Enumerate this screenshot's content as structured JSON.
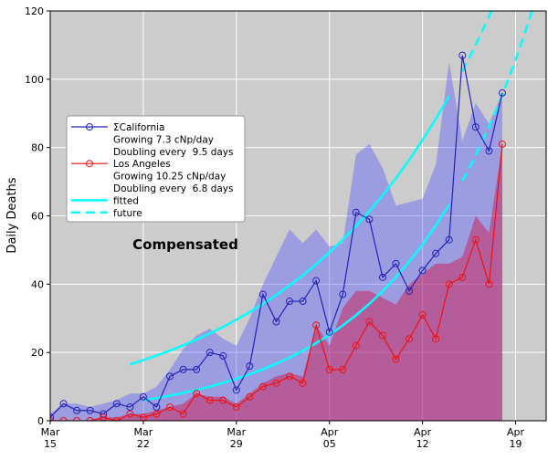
{
  "chart_data": {
    "type": "line",
    "ylabel": "Daily Deaths",
    "annotation": "Compensated",
    "xlim": [
      15,
      52.3
    ],
    "ylim": [
      0,
      120
    ],
    "yticks": [
      0,
      20,
      40,
      60,
      80,
      100,
      120
    ],
    "xticks": [
      {
        "value": 15,
        "label": "Mar 15"
      },
      {
        "value": 22,
        "label": "Mar 22"
      },
      {
        "value": 29,
        "label": "Mar 29"
      },
      {
        "value": 36,
        "label": "Apr 05"
      },
      {
        "value": 43,
        "label": "Apr 12"
      },
      {
        "value": 50,
        "label": "Apr 19"
      }
    ],
    "grid": true,
    "background": "#cccccc",
    "series": [
      {
        "name": "ΣCalifornia",
        "color": "#2222bb",
        "notes": [
          "Growing 7.3 cNp/day",
          "Doubling every  9.5 days"
        ],
        "x": [
          15,
          16,
          17,
          18,
          19,
          20,
          21,
          22,
          23,
          24,
          25,
          26,
          27,
          28,
          29,
          30,
          31,
          32,
          33,
          34,
          35,
          36,
          37,
          38,
          39,
          40,
          41,
          42,
          43,
          44,
          45,
          46,
          47,
          48,
          49
        ],
        "values": [
          1,
          5,
          3,
          3,
          2,
          5,
          4,
          7,
          4,
          13,
          15,
          15,
          20,
          19,
          9,
          16,
          37,
          29,
          35,
          35,
          41,
          26,
          37,
          61,
          59,
          42,
          46,
          38,
          44,
          49,
          53,
          107,
          86,
          79,
          96
        ]
      },
      {
        "name": "Los Angeles",
        "color": "#ee1111",
        "notes": [
          "Growing 10.25 cNp/day",
          "Doubling every  6.8 days"
        ],
        "x": [
          15,
          16,
          17,
          18,
          19,
          20,
          21,
          22,
          23,
          24,
          25,
          26,
          27,
          28,
          29,
          30,
          31,
          32,
          33,
          34,
          35,
          36,
          37,
          38,
          39,
          40,
          41,
          42,
          43,
          44,
          45,
          46,
          47,
          48,
          49
        ],
        "values": [
          0,
          0,
          0,
          0,
          1,
          0,
          2,
          1,
          2,
          4,
          2,
          8,
          6,
          6,
          4,
          7,
          10,
          11,
          13,
          11,
          28,
          15,
          15,
          22,
          29,
          25,
          18,
          24,
          31,
          24,
          40,
          42,
          53,
          40,
          81
        ]
      }
    ],
    "areas": [
      {
        "color": "#5555ff",
        "x": [
          15,
          16,
          17,
          18,
          19,
          20,
          21,
          22,
          23,
          24,
          25,
          26,
          27,
          28,
          29,
          30,
          31,
          32,
          33,
          34,
          35,
          36,
          37,
          38,
          39,
          40,
          41,
          42,
          43,
          44,
          45,
          46,
          47,
          48,
          49
        ],
        "values": [
          2,
          5,
          5,
          4,
          5,
          6,
          8,
          8,
          10,
          15,
          21,
          25,
          27,
          24,
          22,
          30,
          40,
          48,
          56,
          52,
          56,
          51,
          52,
          78,
          81,
          74,
          63,
          64,
          65,
          75,
          105,
          82,
          93,
          87,
          96
        ]
      },
      {
        "color": "#dd0033",
        "x": [
          15,
          16,
          17,
          18,
          19,
          20,
          21,
          22,
          23,
          24,
          25,
          26,
          27,
          28,
          29,
          30,
          31,
          32,
          33,
          34,
          35,
          36,
          37,
          38,
          39,
          40,
          41,
          42,
          43,
          44,
          45,
          46,
          47,
          48,
          49
        ],
        "values": [
          0,
          0,
          0,
          0,
          1,
          1,
          2,
          2,
          3,
          4,
          5,
          8,
          7,
          7,
          5,
          8,
          11,
          13,
          14,
          13,
          28,
          22,
          33,
          38,
          38,
          36,
          34,
          40,
          43,
          46,
          46,
          48,
          60,
          55,
          81
        ]
      }
    ],
    "fits": [
      {
        "name": "fitted",
        "color": "#00ffff",
        "dashed": false,
        "x": [
          21,
          22,
          23,
          24,
          25,
          26,
          27,
          28,
          29,
          30,
          31,
          32,
          33,
          34,
          35,
          36,
          37,
          38,
          39,
          40,
          41,
          42,
          43,
          44,
          45
        ],
        "values": [
          16.5,
          17.75,
          19.09,
          20.54,
          22.09,
          23.77,
          25.57,
          27.5,
          29.58,
          31.82,
          34.23,
          36.82,
          39.61,
          42.61,
          45.84,
          49.31,
          53.04,
          57.06,
          61.38,
          66.02,
          71.02,
          76.4,
          82.18,
          88.4,
          95.1
        ]
      },
      {
        "name": "future",
        "color": "#00ffff",
        "dashed": true,
        "x": [
          46,
          47,
          48,
          49
        ],
        "values": [
          102.3,
          110.0,
          118.4,
          127.3
        ]
      },
      {
        "color": "#00ffff",
        "dashed": false,
        "x": [
          22,
          23,
          24,
          25,
          26,
          27,
          28,
          29,
          30,
          31,
          32,
          33,
          34,
          35,
          36,
          37,
          38,
          39,
          40,
          41,
          42,
          43,
          44,
          45
        ],
        "values": [
          6,
          6.65,
          7.36,
          8.16,
          9.04,
          10.01,
          11.09,
          12.29,
          13.62,
          15.09,
          16.71,
          18.52,
          20.52,
          22.73,
          25.18,
          27.9,
          30.91,
          34.25,
          37.94,
          42.04,
          46.57,
          51.6,
          57.16,
          63.33
        ]
      },
      {
        "color": "#00ffff",
        "dashed": true,
        "x": [
          46,
          47,
          48,
          49,
          50,
          51,
          52
        ],
        "values": [
          70.17,
          77.74,
          86.13,
          95.42,
          105.7,
          117.1,
          129.8
        ]
      }
    ]
  }
}
